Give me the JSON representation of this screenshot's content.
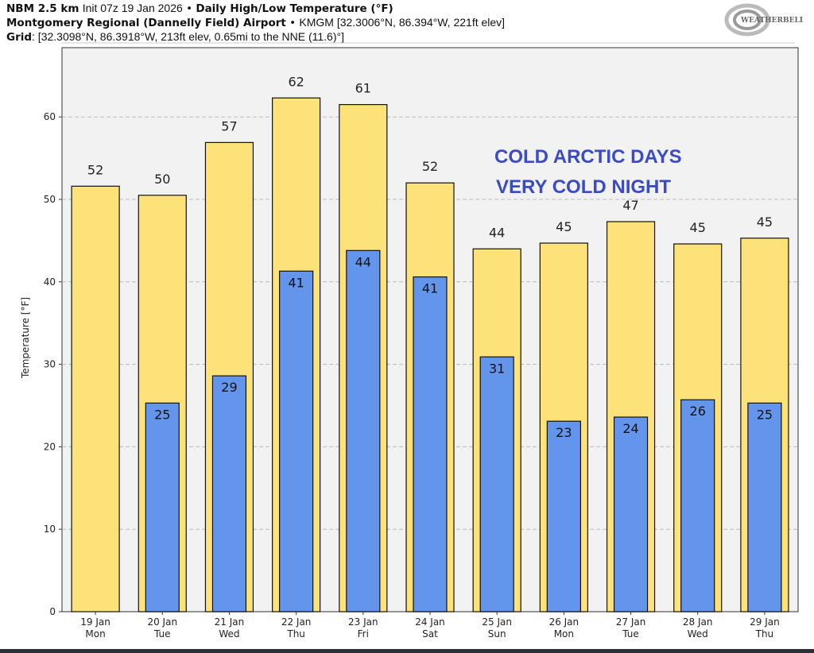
{
  "header": {
    "model": "NBM 2.5 km",
    "init": "Init 07z 19 Jan 2026",
    "sep": "•",
    "product": "Daily High/Low Temperature (°F)",
    "station_name": "Montgomery Regional (Dannelly Field) Airport",
    "station_info": "KMGM [32.3006°N, 86.394°W, 221ft elev]",
    "grid_label": "Grid",
    "grid_info": ": [32.3098°N, 86.3918°W, 213ft elev, 0.65mi to the NNE (11.6)°]"
  },
  "logo": {
    "text": "WeatherBELL"
  },
  "chart_data": {
    "type": "bar",
    "title": "Daily High/Low Temperature (°F)",
    "xlabel": "",
    "ylabel": "Temperature [°F]",
    "ylim": [
      0,
      68.4
    ],
    "yticks": [
      0,
      10,
      20,
      30,
      40,
      50,
      60
    ],
    "grid": true,
    "categories": [
      "19 Jan",
      "20 Jan",
      "21 Jan",
      "22 Jan",
      "23 Jan",
      "24 Jan",
      "25 Jan",
      "26 Jan",
      "27 Jan",
      "28 Jan",
      "29 Jan"
    ],
    "weekdays": [
      "Mon",
      "Tue",
      "Wed",
      "Thu",
      "Fri",
      "Sat",
      "Sun",
      "Mon",
      "Tue",
      "Wed",
      "Thu"
    ],
    "series": [
      {
        "name": "High",
        "color": "#fde27a",
        "values": [
          51.6,
          50.5,
          56.9,
          62.3,
          61.5,
          52.0,
          44.0,
          44.7,
          47.3,
          44.6,
          45.3
        ],
        "labels": [
          "52",
          "50",
          "57",
          "62",
          "61",
          "52",
          "44",
          "45",
          "47",
          "45",
          "45"
        ]
      },
      {
        "name": "Low",
        "color": "#6495ed",
        "values": [
          null,
          25.3,
          28.6,
          41.3,
          43.8,
          40.6,
          30.9,
          23.1,
          23.6,
          25.7,
          25.3
        ],
        "labels": [
          "",
          "25",
          "29",
          "41",
          "44",
          "41",
          "31",
          "23",
          "24",
          "26",
          "25"
        ]
      }
    ],
    "annotations": [
      "COLD ARCTIC DAYS",
      "VERY COLD NIGHT"
    ],
    "annotation_color": "#3a4bc4"
  }
}
